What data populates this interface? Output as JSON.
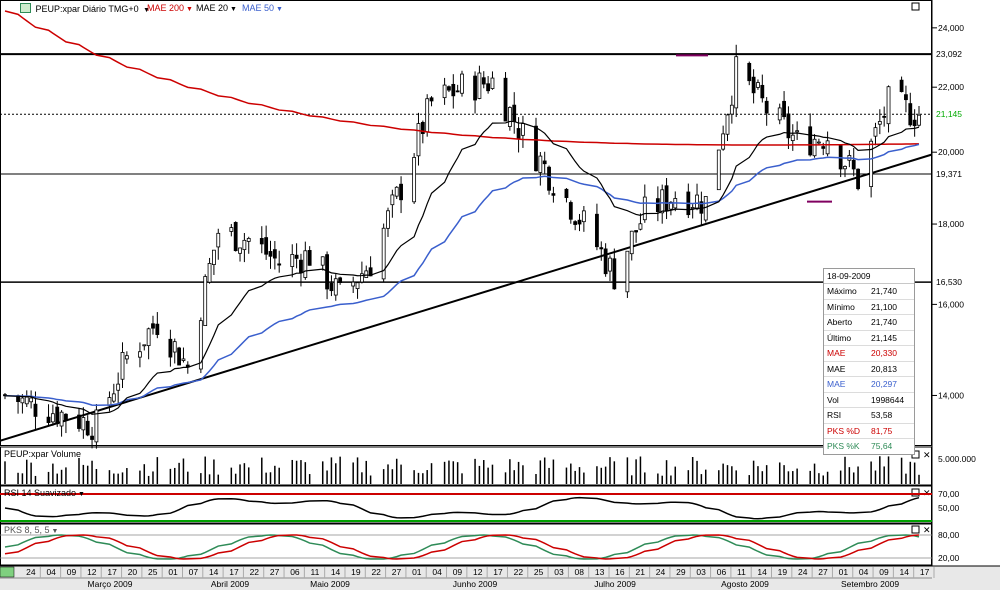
{
  "header": {
    "symbol_label": "PEUP:xpar Diário TMG+0",
    "ma200_label": "MAE 200",
    "ma20_label": "MAE 20",
    "ma50_label": "MAE 50",
    "symbol_icon": "chart-type-icon"
  },
  "colors": {
    "ma200": "#cc0000",
    "ma20": "#000000",
    "ma50": "#3a5fcd",
    "pks_d": "#cc0000",
    "pks_k": "#2e8b57",
    "volume": "#000000",
    "price_label_highlight": "#00aa00"
  },
  "price_axis": {
    "ticks": [
      "24,000",
      "22,000",
      "20,000",
      "18,000",
      "16,000",
      "14,000"
    ],
    "hlines": [
      "23,092",
      "21,145",
      "19,371",
      "16,530"
    ],
    "last_value": "21,145"
  },
  "volume_panel": {
    "title": "PEUP:xpar Volume",
    "axis_label": "5.000.000"
  },
  "rsi_panel": {
    "title": "RSI 14 Suavizado",
    "axis_labels": [
      "70,00",
      "50,00"
    ]
  },
  "pks_panel": {
    "title": "PKS 8, 5, 5",
    "axis_labels": [
      "80,00",
      "20,00"
    ]
  },
  "info_box": {
    "date": "18-09-2009",
    "rows": [
      {
        "label": "Máximo",
        "value": "21,740",
        "color": "#000000"
      },
      {
        "label": "Mínimo",
        "value": "21,100",
        "color": "#000000"
      },
      {
        "label": "Aberto",
        "value": "21,740",
        "color": "#000000"
      },
      {
        "label": "Último",
        "value": "21,145",
        "color": "#000000"
      },
      {
        "label": "MAE",
        "value": "20,330",
        "color": "#cc0000"
      },
      {
        "label": "MAE",
        "value": "20,813",
        "color": "#000000"
      },
      {
        "label": "MAE",
        "value": "20,297",
        "color": "#3a5fcd"
      },
      {
        "label": "Vol",
        "value": "1998644",
        "color": "#000000"
      },
      {
        "label": "RSI",
        "value": "53,58",
        "color": "#000000"
      },
      {
        "label": "PKS %D",
        "value": "81,75",
        "color": "#cc0000"
      },
      {
        "label": "PKS %K",
        "value": "75,64",
        "color": "#2e8b57"
      }
    ]
  },
  "date_axis": {
    "days": [
      "24",
      "04",
      "09",
      "12",
      "17",
      "20",
      "25",
      "01",
      "07",
      "14",
      "17",
      "22",
      "27",
      "06",
      "11",
      "14",
      "19",
      "22",
      "27",
      "01",
      "04",
      "09",
      "12",
      "17",
      "22",
      "25",
      "03",
      "08",
      "13",
      "16",
      "21",
      "24",
      "29",
      "03",
      "06",
      "11",
      "14",
      "19",
      "24",
      "27",
      "01",
      "04",
      "09",
      "14",
      "17"
    ],
    "months": [
      "Março 2009",
      "Abril 2009",
      "Maio 2009",
      "Junho 2009",
      "Julho 2009",
      "Agosto 2009",
      "Setembro 2009"
    ]
  },
  "chart_data": {
    "type": "candlestick",
    "title": "PEUP:xpar Diário TMG+0",
    "y_scale": "log",
    "ylim": [
      13.0,
      25.0
    ],
    "x_range": [
      "2009-02-20",
      "2009-09-18"
    ],
    "support_resistance_levels": [
      23.092,
      21.145,
      19.371,
      16.53
    ],
    "trendline": {
      "from": {
        "date": "2009-02-20",
        "price": 13.1
      },
      "to": {
        "date": "2009-09-18",
        "price": 19.7
      }
    },
    "close_series": [
      {
        "date": "2009-02-20",
        "close": 14.0
      },
      {
        "date": "2009-02-27",
        "close": 13.8
      },
      {
        "date": "2009-03-06",
        "close": 13.6
      },
      {
        "date": "2009-03-13",
        "close": 13.4
      },
      {
        "date": "2009-03-20",
        "close": 14.8
      },
      {
        "date": "2009-03-27",
        "close": 15.6
      },
      {
        "date": "2009-04-03",
        "close": 14.6
      },
      {
        "date": "2009-04-10",
        "close": 17.8
      },
      {
        "date": "2009-04-17",
        "close": 17.6
      },
      {
        "date": "2009-04-24",
        "close": 17.0
      },
      {
        "date": "2009-05-01",
        "close": 17.2
      },
      {
        "date": "2009-05-08",
        "close": 16.2
      },
      {
        "date": "2009-05-15",
        "close": 17.0
      },
      {
        "date": "2009-05-22",
        "close": 19.0
      },
      {
        "date": "2009-05-29",
        "close": 21.5
      },
      {
        "date": "2009-06-05",
        "close": 22.0
      },
      {
        "date": "2009-06-12",
        "close": 22.2
      },
      {
        "date": "2009-06-19",
        "close": 20.5
      },
      {
        "date": "2009-06-26",
        "close": 19.2
      },
      {
        "date": "2009-07-03",
        "close": 18.0
      },
      {
        "date": "2009-07-10",
        "close": 16.7
      },
      {
        "date": "2009-07-17",
        "close": 18.3
      },
      {
        "date": "2009-07-24",
        "close": 18.8
      },
      {
        "date": "2009-07-31",
        "close": 18.6
      },
      {
        "date": "2009-08-07",
        "close": 22.5
      },
      {
        "date": "2009-08-14",
        "close": 21.3
      },
      {
        "date": "2009-08-21",
        "close": 20.3
      },
      {
        "date": "2009-08-28",
        "close": 20.5
      },
      {
        "date": "2009-09-04",
        "close": 19.2
      },
      {
        "date": "2009-09-11",
        "close": 21.5
      },
      {
        "date": "2009-09-18",
        "close": 21.145
      }
    ],
    "series": [
      {
        "name": "MAE 200",
        "final_value": 20.33
      },
      {
        "name": "MAE 20",
        "final_value": 20.813
      },
      {
        "name": "MAE 50",
        "final_value": 20.297
      }
    ],
    "last_bar": {
      "date": "2009-09-18",
      "high": 21.74,
      "low": 21.1,
      "open": 21.74,
      "close": 21.145,
      "volume": 1998644,
      "rsi": 53.58,
      "pks_d": 81.75,
      "pks_k": 75.64
    },
    "indicators": {
      "rsi": {
        "levels": [
          70,
          50
        ]
      },
      "pks": {
        "levels": [
          80,
          20
        ]
      }
    }
  }
}
